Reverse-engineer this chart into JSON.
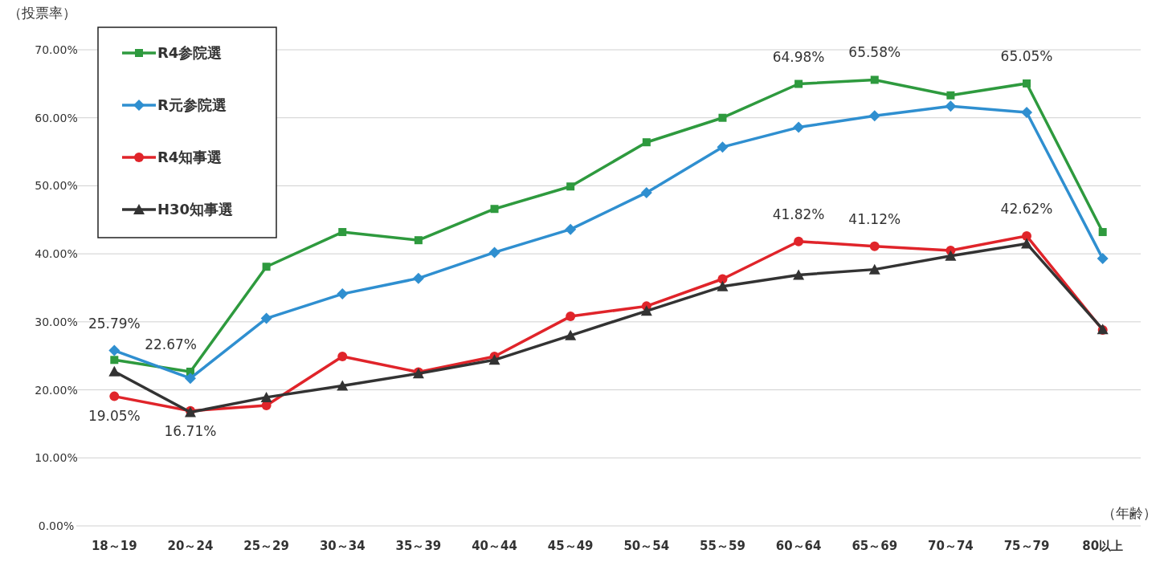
{
  "chart_data": {
    "type": "line",
    "ylabel": "（投票率）",
    "xlabel": "（年齢）",
    "categories": [
      "18～19",
      "20～24",
      "25～29",
      "30～34",
      "35～39",
      "40～44",
      "45～49",
      "50～54",
      "55～59",
      "60～64",
      "65～69",
      "70～74",
      "75～79",
      "80以上"
    ],
    "ylim": [
      0,
      70
    ],
    "yticks": [
      {
        "value": 0,
        "label": "0.00%"
      },
      {
        "value": 10,
        "label": "10.00%"
      },
      {
        "value": 20,
        "label": "20.00%"
      },
      {
        "value": 30,
        "label": "30.00%"
      },
      {
        "value": 40,
        "label": "40.00%"
      },
      {
        "value": 50,
        "label": "50.00%"
      },
      {
        "value": 60,
        "label": "60.00%"
      },
      {
        "value": 70,
        "label": "70.00%"
      }
    ],
    "grid": "y",
    "legend": "top left",
    "series": [
      {
        "name": "R4参院選",
        "color": "#2e9a3e",
        "marker": "square",
        "values": [
          24.4,
          22.67,
          38.1,
          43.2,
          42.0,
          46.6,
          49.9,
          56.4,
          60.0,
          64.98,
          65.58,
          63.3,
          65.05,
          43.2
        ]
      },
      {
        "name": "R元参院選",
        "color": "#2f8fd0",
        "marker": "diamond",
        "values": [
          25.79,
          21.7,
          30.5,
          34.1,
          36.4,
          40.2,
          43.6,
          49.0,
          55.7,
          58.6,
          60.3,
          61.7,
          60.8,
          39.3
        ]
      },
      {
        "name": "R4知事選",
        "color": "#e0242a",
        "marker": "circle",
        "values": [
          19.05,
          16.9,
          17.7,
          24.9,
          22.6,
          24.9,
          30.8,
          32.3,
          36.3,
          41.82,
          41.12,
          40.5,
          42.62,
          28.8
        ]
      },
      {
        "name": "H30知事選",
        "color": "#333333",
        "marker": "triangle",
        "values": [
          22.7,
          16.71,
          18.9,
          20.6,
          22.4,
          24.4,
          28.0,
          31.6,
          35.2,
          36.9,
          37.7,
          39.7,
          41.5,
          28.9
        ]
      }
    ],
    "annotations": [
      {
        "text": "25.79%",
        "x": "18～19",
        "y": 25.79
      },
      {
        "text": "19.05%",
        "x": "18～19",
        "y": 19.05
      },
      {
        "text": "22.67%",
        "x": "20～24",
        "y": 22.67
      },
      {
        "text": "16.71%",
        "x": "20～24",
        "y": 16.71
      },
      {
        "text": "64.98%",
        "x": "60～64",
        "y": 64.98
      },
      {
        "text": "65.58%",
        "x": "65～69",
        "y": 65.58
      },
      {
        "text": "65.05%",
        "x": "75～79",
        "y": 65.05
      },
      {
        "text": "41.82%",
        "x": "60～64",
        "y": 41.82
      },
      {
        "text": "41.12%",
        "x": "65～69",
        "y": 41.12
      },
      {
        "text": "42.62%",
        "x": "75～79",
        "y": 42.62
      }
    ]
  }
}
